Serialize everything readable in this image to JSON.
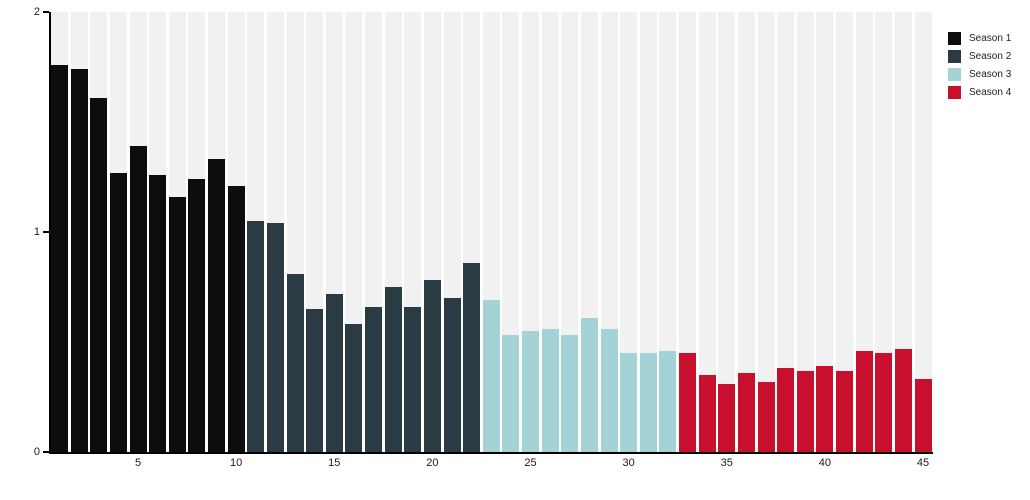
{
  "chart_data": {
    "type": "bar",
    "title": "",
    "xlabel": "",
    "ylabel": "",
    "x": [
      1,
      2,
      3,
      4,
      5,
      6,
      7,
      8,
      9,
      10,
      11,
      12,
      13,
      14,
      15,
      16,
      17,
      18,
      19,
      20,
      21,
      22,
      23,
      24,
      25,
      26,
      27,
      28,
      29,
      30,
      31,
      32,
      33,
      34,
      35,
      36,
      37,
      38,
      39,
      40,
      41,
      42,
      43,
      44,
      45
    ],
    "values": [
      1.76,
      1.74,
      1.61,
      1.27,
      1.39,
      1.26,
      1.16,
      1.24,
      1.33,
      1.21,
      1.05,
      1.04,
      0.81,
      0.65,
      0.72,
      0.58,
      0.66,
      0.75,
      0.66,
      0.78,
      0.7,
      0.86,
      0.69,
      0.53,
      0.55,
      0.56,
      0.53,
      0.61,
      0.56,
      0.45,
      0.45,
      0.46,
      0.45,
      0.35,
      0.31,
      0.36,
      0.32,
      0.38,
      0.37,
      0.39,
      0.37,
      0.46,
      0.45,
      0.47,
      0.33
    ],
    "seasons": [
      {
        "name": "Season 1",
        "color": "#0d0d0d",
        "episode_range": [
          1,
          10
        ]
      },
      {
        "name": "Season 2",
        "color": "#2a3b43",
        "episode_range": [
          11,
          22
        ]
      },
      {
        "name": "Season 3",
        "color": "#a3d3d6",
        "episode_range": [
          23,
          32
        ]
      },
      {
        "name": "Season 4",
        "color": "#c8102e",
        "episode_range": [
          33,
          45
        ]
      }
    ],
    "xticks": [
      5,
      10,
      15,
      20,
      25,
      30,
      35,
      40,
      45
    ],
    "yticks": [
      0,
      1,
      2
    ],
    "ylim": [
      0,
      2
    ],
    "grid": false,
    "legend_position": "top-right",
    "background_band_color": "#f1f1f1",
    "background_band_full_height": true
  }
}
